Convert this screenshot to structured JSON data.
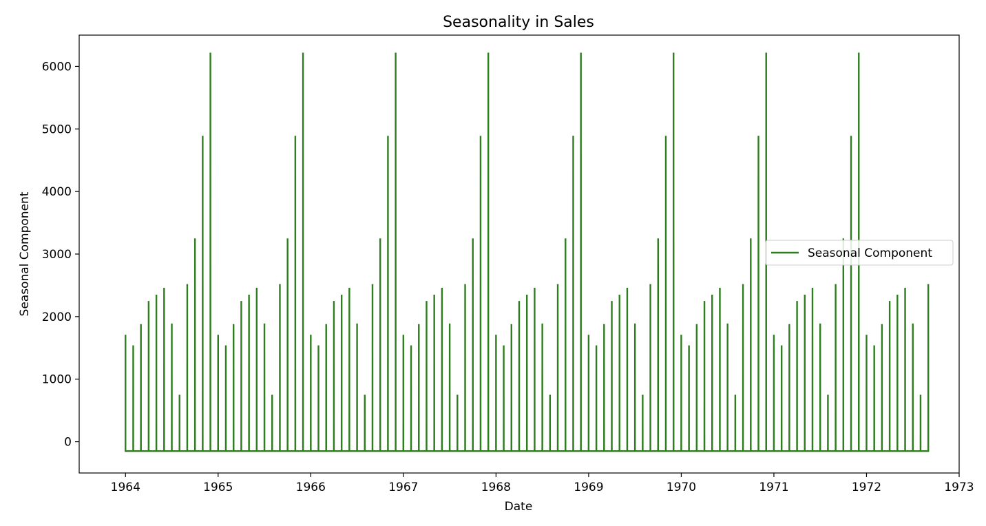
{
  "chart_data": {
    "type": "line",
    "title": "Seasonality in Sales",
    "xlabel": "Date",
    "ylabel": "Seasonal Component",
    "legend": {
      "placement": "center-right",
      "entries": [
        "Seasonal Component"
      ]
    },
    "grid": false,
    "series_color": "#2e7d1f",
    "x_ticks": [
      "1964",
      "1965",
      "1966",
      "1967",
      "1968",
      "1969",
      "1970",
      "1971",
      "1972",
      "1973"
    ],
    "y_ticks": [
      0,
      1000,
      2000,
      3000,
      4000,
      5000,
      6000
    ],
    "xlim": [
      "1963-07",
      "1973-01"
    ],
    "ylim": [
      -500,
      6500
    ],
    "baseline_value": -150,
    "start_month": "1964-01",
    "end_month": "1972-09",
    "monthly_pattern": [
      1710,
      1540,
      1880,
      2250,
      2350,
      2460,
      1890,
      750,
      2520,
      3250,
      4890,
      6220
    ],
    "series": [
      {
        "name": "Seasonal Component",
        "pattern_key": "monthly_pattern"
      }
    ]
  }
}
